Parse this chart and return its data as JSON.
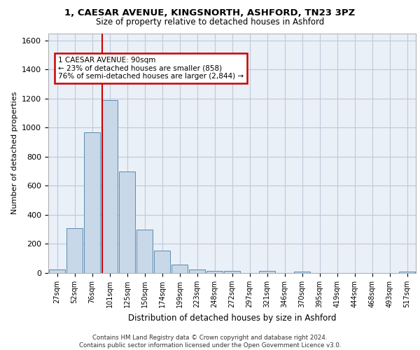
{
  "title_line1": "1, CAESAR AVENUE, KINGSNORTH, ASHFORD, TN23 3PZ",
  "title_line2": "Size of property relative to detached houses in Ashford",
  "xlabel": "Distribution of detached houses by size in Ashford",
  "ylabel": "Number of detached properties",
  "footer_line1": "Contains HM Land Registry data © Crown copyright and database right 2024.",
  "footer_line2": "Contains public sector information licensed under the Open Government Licence v3.0.",
  "categories": [
    "27sqm",
    "52sqm",
    "76sqm",
    "101sqm",
    "125sqm",
    "150sqm",
    "174sqm",
    "199sqm",
    "223sqm",
    "248sqm",
    "272sqm",
    "297sqm",
    "321sqm",
    "346sqm",
    "370sqm",
    "395sqm",
    "419sqm",
    "444sqm",
    "468sqm",
    "493sqm",
    "517sqm"
  ],
  "values": [
    22,
    310,
    970,
    1190,
    700,
    300,
    155,
    60,
    25,
    15,
    15,
    0,
    15,
    0,
    12,
    0,
    0,
    0,
    0,
    0,
    12
  ],
  "bar_color": "#c8d8e8",
  "bar_edge_color": "#5a8ab0",
  "property_line_x": 2.58,
  "annotation_text_line1": "1 CAESAR AVENUE: 90sqm",
  "annotation_text_line2": "← 23% of detached houses are smaller (858)",
  "annotation_text_line3": "76% of semi-detached houses are larger (2,844) →",
  "annotation_box_color": "#ffffff",
  "annotation_box_edge_color": "#cc0000",
  "vline_color": "#cc0000",
  "ylim": [
    0,
    1650
  ],
  "yticks": [
    0,
    200,
    400,
    600,
    800,
    1000,
    1200,
    1400,
    1600
  ],
  "grid_color": "#c0c8d8",
  "bg_color": "#eaf0f8"
}
